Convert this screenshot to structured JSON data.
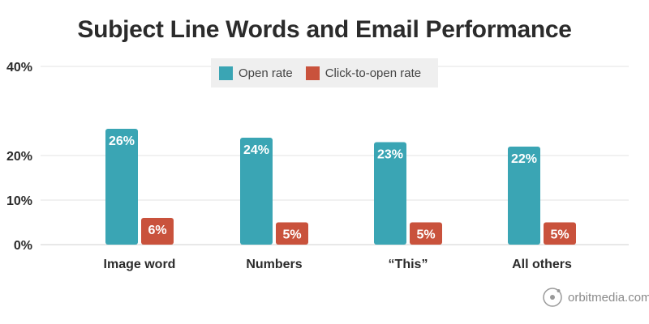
{
  "chart_data": {
    "type": "bar",
    "title": "Subject Line Words and Email Performance",
    "xlabel": "",
    "ylabel": "",
    "categories": [
      "Image word",
      "Numbers",
      "“This”",
      "All others"
    ],
    "series": [
      {
        "name": "Open rate",
        "color": "#3aa5b4",
        "values": [
          26,
          24,
          23,
          22
        ],
        "labels": [
          "26%",
          "24%",
          "23%",
          "22%"
        ]
      },
      {
        "name": "Click-to-open rate",
        "color": "#c9523c",
        "values": [
          6,
          5,
          5,
          5
        ],
        "labels": [
          "6%",
          "5%",
          "5%",
          "5%"
        ]
      }
    ],
    "ylim": [
      0,
      40
    ],
    "yticks": [
      {
        "value": 0,
        "label": "0%"
      },
      {
        "value": 10,
        "label": "10%"
      },
      {
        "value": 20,
        "label": "20%"
      },
      {
        "value": 40,
        "label": "40%"
      }
    ],
    "grid": true,
    "legend": "top-center"
  },
  "branding": {
    "text": "orbitmedia.com",
    "icon": "orbit-logo-icon"
  }
}
